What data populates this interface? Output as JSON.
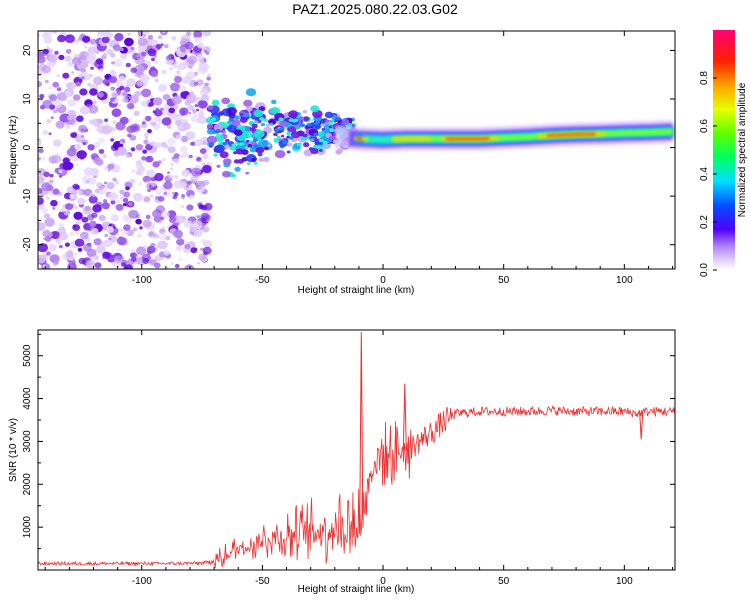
{
  "title": "PAZ1.2025.080.22.03.G02",
  "chart_data": [
    {
      "type": "heatmap",
      "xlabel": "Height of straight line (km)",
      "ylabel": "Frequency (Hz)",
      "xlim": [
        -143,
        121
      ],
      "ylim": [
        -25,
        24
      ],
      "xticks": [
        -100,
        -50,
        0,
        50,
        100
      ],
      "yticks": [
        -20,
        -10,
        0,
        10,
        20
      ],
      "colorbar": {
        "label": "Normalized spectral amplitude",
        "range": [
          0,
          1
        ],
        "ticks": [
          "0.0",
          "0.2",
          "0.4",
          "0.6",
          "0.8"
        ],
        "tick_values": [
          0,
          0.2,
          0.4,
          0.6,
          0.8
        ]
      },
      "ridge": [
        {
          "x": -72,
          "y": 5.5
        },
        {
          "x": -60,
          "y": 4.5
        },
        {
          "x": -50,
          "y": 4
        },
        {
          "x": -40,
          "y": 3.5
        },
        {
          "x": -30,
          "y": 3
        },
        {
          "x": -20,
          "y": 2.2
        },
        {
          "x": -10,
          "y": 1.8
        },
        {
          "x": 0,
          "y": 1.6
        },
        {
          "x": 10,
          "y": 1.8
        },
        {
          "x": 20,
          "y": 1.8
        },
        {
          "x": 30,
          "y": 1.8
        },
        {
          "x": 40,
          "y": 1.8
        },
        {
          "x": 50,
          "y": 2
        },
        {
          "x": 60,
          "y": 2.2
        },
        {
          "x": 70,
          "y": 2.5
        },
        {
          "x": 80,
          "y": 2.7
        },
        {
          "x": 90,
          "y": 2.8
        },
        {
          "x": 100,
          "y": 3
        },
        {
          "x": 110,
          "y": 3.1
        },
        {
          "x": 121,
          "y": 3.3
        }
      ],
      "noise_region": {
        "x": [
          -143,
          -72
        ],
        "y": [
          -25,
          24
        ]
      }
    },
    {
      "type": "line",
      "xlabel": "Height of straight line (km)",
      "ylabel": "SNR (10 * v/v)",
      "xlim": [
        -143,
        121
      ],
      "ylim": [
        0,
        5600
      ],
      "xticks": [
        -100,
        -50,
        0,
        50,
        100
      ],
      "yticks": [
        1000,
        2000,
        3000,
        4000,
        5000
      ],
      "series": [
        {
          "color": "#ee3030",
          "x": [
            -143,
            -130,
            -110,
            -90,
            -75,
            -70,
            -65,
            -60,
            -55,
            -50,
            -45,
            -40,
            -35,
            -30,
            -25,
            -20,
            -15,
            -12,
            -10,
            -8,
            -5,
            0,
            5,
            10,
            15,
            20,
            25,
            30,
            40,
            50,
            60,
            70,
            80,
            90,
            100,
            105,
            110,
            121
          ],
          "y": [
            150,
            150,
            150,
            150,
            160,
            200,
            350,
            500,
            600,
            700,
            750,
            800,
            850,
            900,
            950,
            1000,
            1000,
            1050,
            1100,
            1300,
            2400,
            2700,
            2750,
            2800,
            3000,
            3200,
            3450,
            3650,
            3700,
            3700,
            3700,
            3720,
            3700,
            3700,
            3700,
            3650,
            3700,
            3700
          ]
        }
      ],
      "annotations": [
        {
          "x": -9,
          "y": 5550
        },
        {
          "x": 9,
          "y": 4350
        },
        {
          "x": 107,
          "y": 3050
        }
      ]
    }
  ],
  "colors": {
    "signal": "#ee3030",
    "noise": "#c39af0",
    "axis": "#000000"
  }
}
